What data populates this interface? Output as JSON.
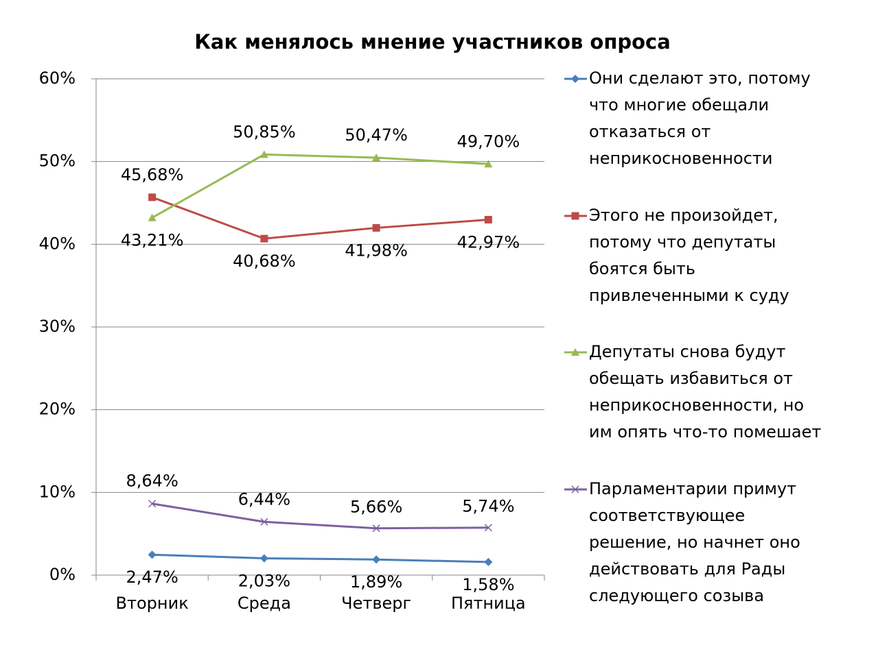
{
  "chart_data": {
    "type": "line",
    "title": "Как менялось мнение участников опроса",
    "categories": [
      "Вторник",
      "Среда",
      "Четверг",
      "Пятница"
    ],
    "series": [
      {
        "name": "Они сделают это, потому что многие обещали отказаться от неприкосновенности",
        "color": "#4a7ebb",
        "marker": "diamond",
        "values": [
          2.47,
          2.03,
          1.89,
          1.58
        ],
        "value_labels": [
          "2,47%",
          "2,03%",
          "1,89%",
          "1,58%"
        ]
      },
      {
        "name": "Этого не произойдет, потому что депутаты боятся быть привлеченными к суду",
        "color": "#be4b48",
        "marker": "square",
        "values": [
          45.68,
          40.68,
          41.98,
          42.97
        ],
        "value_labels": [
          "45,68%",
          "40,68%",
          "41,98%",
          "42,97%"
        ]
      },
      {
        "name": "Депутаты снова будут обещать избавиться от неприкосновенности, но им опять что-то помешает",
        "color": "#98b954",
        "marker": "triangle",
        "values": [
          43.21,
          50.85,
          50.47,
          49.7
        ],
        "value_labels": [
          "43,21%",
          "50,85%",
          "50,47%",
          "49,70%"
        ]
      },
      {
        "name": "Парламентарии примут соответствующее решение, но начнет оно действовать для Рады следующего созыва",
        "color": "#7d60a0",
        "marker": "x",
        "values": [
          8.64,
          6.44,
          5.66,
          5.74
        ],
        "value_labels": [
          "8,64%",
          "6,44%",
          "5,66%",
          "5,74%"
        ]
      }
    ],
    "ylim": [
      0,
      60
    ],
    "yticks": [
      {
        "value": 0,
        "label": "0%"
      },
      {
        "value": 10,
        "label": "10%"
      },
      {
        "value": 20,
        "label": "20%"
      },
      {
        "value": 30,
        "label": "30%"
      },
      {
        "value": 40,
        "label": "40%"
      },
      {
        "value": 50,
        "label": "50%"
      },
      {
        "value": 60,
        "label": "60%"
      }
    ],
    "grid": true,
    "legend": "right"
  }
}
